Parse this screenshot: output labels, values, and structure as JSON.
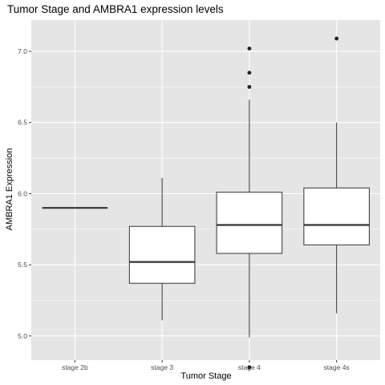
{
  "chart_data": {
    "type": "boxplot",
    "title": "Tumor Stage and AMBRA1 expression levels",
    "xlabel": "Tumor Stage",
    "ylabel": "AMBRA1 Expression",
    "ylim": [
      4.83,
      7.22
    ],
    "yticks": [
      5.0,
      5.5,
      6.0,
      6.5,
      7.0
    ],
    "ytick_labels": [
      "5.0",
      "5.5",
      "6.0",
      "6.5",
      "7.0"
    ],
    "grid": true,
    "panel_background": "#e5e5e5",
    "grid_color": "#ffffff",
    "categories": [
      "stage 2b",
      "stage 3",
      "stage 4",
      "stage 4s"
    ],
    "boxes": [
      {
        "category": "stage 2b",
        "whisker_low": 5.9,
        "q1": 5.9,
        "median": 5.9,
        "q3": 5.9,
        "whisker_high": 5.9,
        "outliers": []
      },
      {
        "category": "stage 3",
        "whisker_low": 5.11,
        "q1": 5.37,
        "median": 5.52,
        "q3": 5.77,
        "whisker_high": 6.11,
        "outliers": []
      },
      {
        "category": "stage 4",
        "whisker_low": 4.99,
        "q1": 5.58,
        "median": 5.78,
        "q3": 6.01,
        "whisker_high": 6.66,
        "outliers": [
          4.78,
          6.75,
          6.85,
          7.02
        ]
      },
      {
        "category": "stage 4s",
        "whisker_low": 5.16,
        "q1": 5.64,
        "median": 5.78,
        "q3": 6.04,
        "whisker_high": 6.5,
        "outliers": [
          7.09
        ]
      }
    ]
  }
}
